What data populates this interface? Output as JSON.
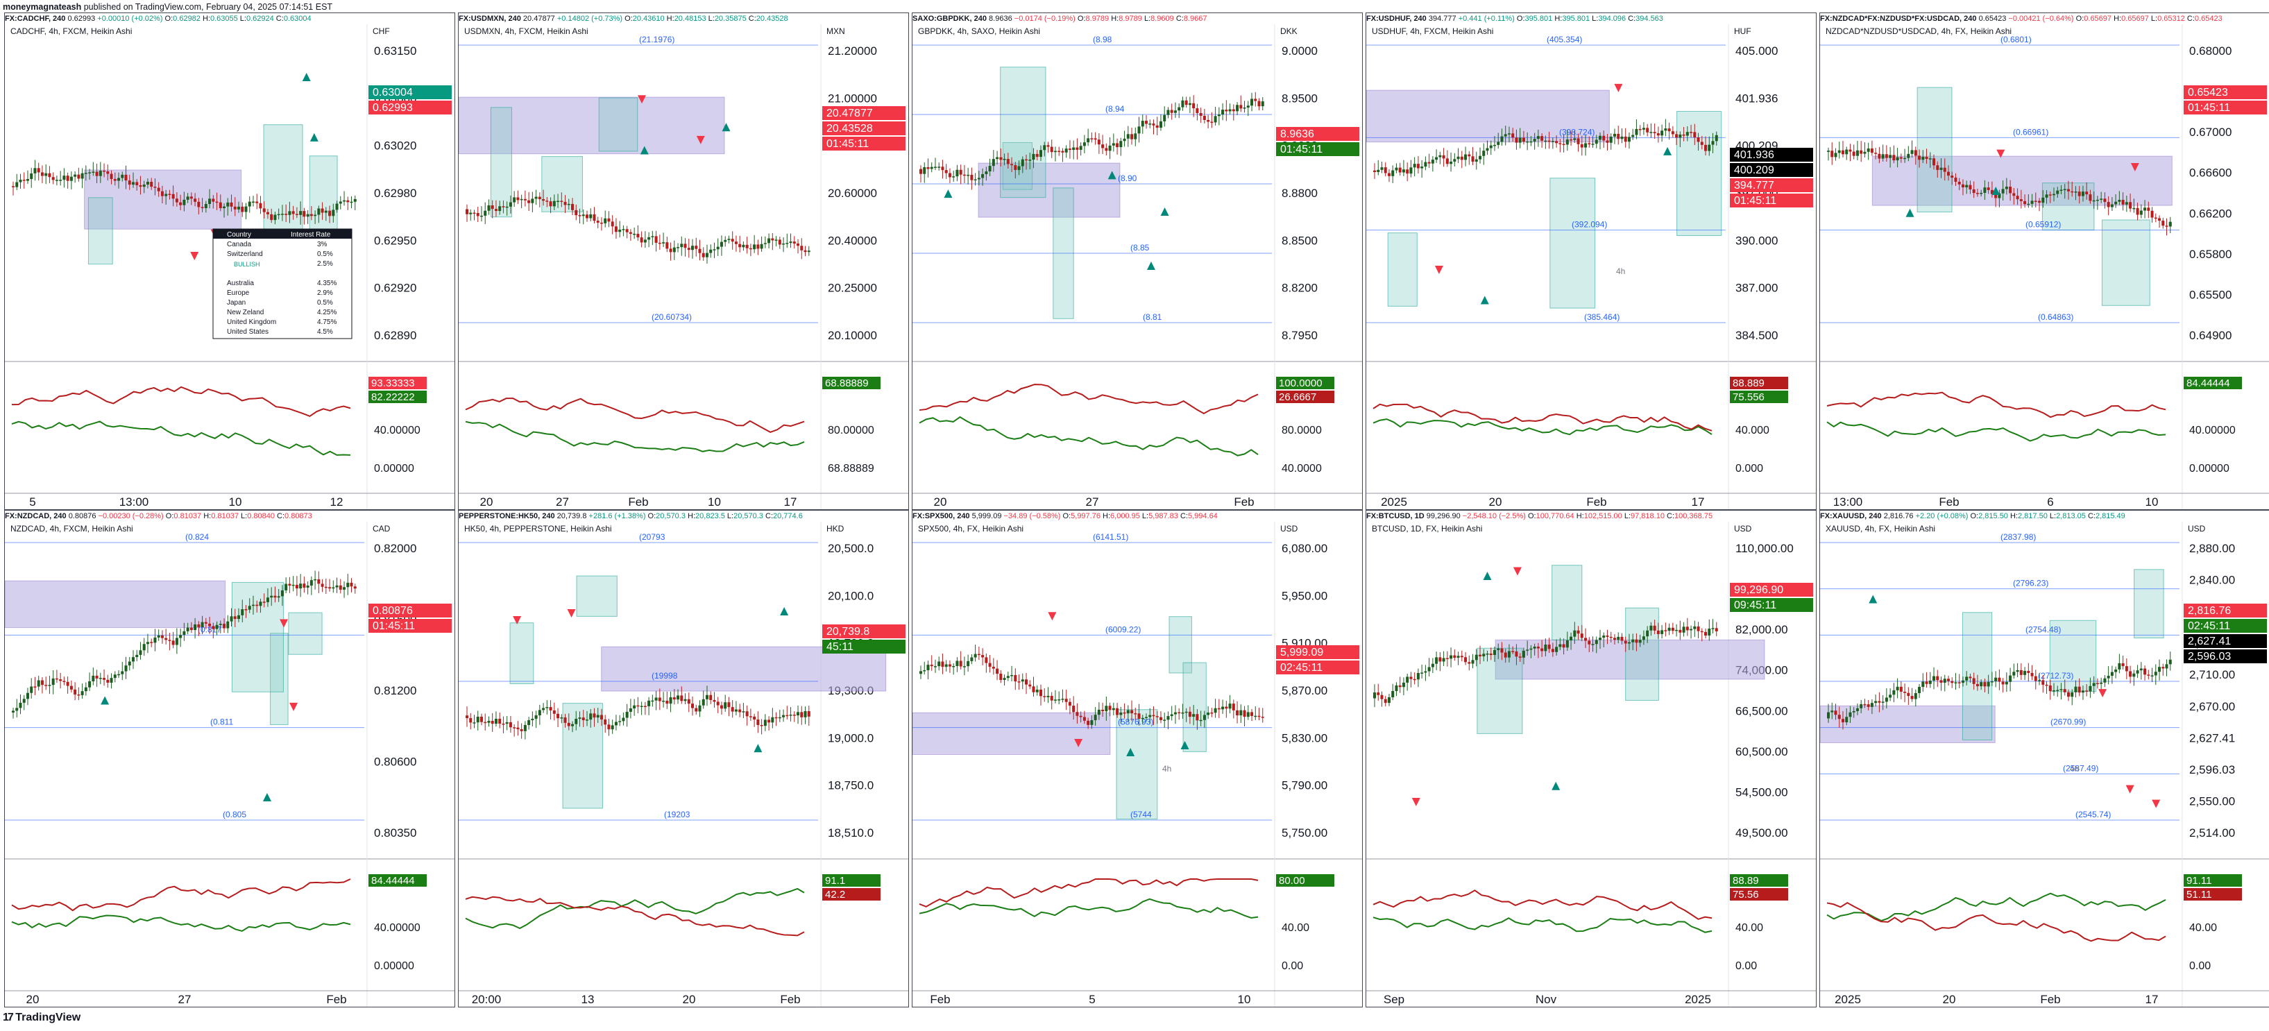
{
  "publisher": {
    "user": "moneymagnateash",
    "text": " published on TradingView.com, February 04, 2025 07:14:51 EST"
  },
  "footer": {
    "brand": "TradingView"
  },
  "colors": {
    "up": "#089981",
    "down": "#f23645",
    "zone": "#b2a9e0",
    "box": "#80cbc4",
    "grid": "#e0e3eb",
    "osc_green": "#1b7e14",
    "osc_red": "#b71c1c",
    "level_blue": "#2962ff"
  },
  "panels": [
    {
      "id": "cadchf",
      "header": {
        "sym": "FX:CADCHF, 240",
        "quote": "0.62993",
        "chg": "+0.00010 (+0.02%)",
        "dir": "up",
        "o": "0.62982",
        "h": "0.63055",
        "l": "0.62924",
        "c": "0.63004"
      },
      "legend": "CADCHF, 4h, FXCM, Heikin Ashi",
      "currency": "CHF",
      "price_ticks": [
        "0.63150",
        "0.63060",
        "0.63020",
        "0.62980",
        "0.62950",
        "0.62920",
        "0.62890"
      ],
      "price_tags": [
        {
          "text": "0.63004",
          "color": "#089981"
        },
        {
          "text": "0.62993",
          "color": "#f23645"
        }
      ],
      "osc_ticks": [
        "40.00000",
        "0.00000"
      ],
      "osc_tags": [
        {
          "text": "93.33333",
          "color": "#f23645"
        },
        {
          "text": "82.22222",
          "color": "#1b7e14"
        }
      ],
      "time_ticks": [
        "5",
        "13:00",
        "10",
        "12"
      ],
      "table": {
        "headers": [
          "Country",
          "Interest Rate"
        ],
        "rows": [
          [
            "Canada",
            "3%"
          ],
          [
            "Switzerland",
            "0.5%"
          ],
          [
            "",
            "2.5%"
          ],
          [
            "Australia",
            "4.35%"
          ],
          [
            "Europe",
            "2.9%"
          ],
          [
            "Japan",
            "0.5%"
          ],
          [
            "New Zeland",
            "4.25%"
          ],
          [
            "United Kingdom",
            "4.75%"
          ],
          [
            "United States",
            "4.5%"
          ]
        ],
        "note": "BULLISH"
      }
    },
    {
      "id": "usdmxn",
      "header": {
        "sym": "FX:USDMXN, 240",
        "quote": "20.47877",
        "chg": "+0.14802 (+0.73%)",
        "dir": "up",
        "o": "20.43610",
        "h": "20.48153",
        "l": "20.35875",
        "c": "20.43528"
      },
      "legend": "USDMXN, 4h, FXCM, Heikin Ashi",
      "currency": "MXN",
      "price_ticks": [
        "21.20000",
        "21.00000",
        "20.80000",
        "20.60000",
        "20.40000",
        "20.25000",
        "20.10000"
      ],
      "price_tags": [
        {
          "text": "20.47877",
          "color": "#f23645"
        },
        {
          "text": "20.43528",
          "color": "#f23645"
        },
        {
          "text": "01:45:11",
          "color": "#f23645"
        }
      ],
      "levels": [
        "(21.1976)",
        "(20.60734)"
      ],
      "osc_ticks": [
        "80.00000",
        "68.88889"
      ],
      "osc_tags": [
        {
          "text": "68.88889",
          "color": "#1b7e14"
        }
      ],
      "time_ticks": [
        "20",
        "27",
        "Feb",
        "10",
        "17"
      ]
    },
    {
      "id": "gbpdkk",
      "header": {
        "sym": "SAXO:GBPDKK, 240",
        "quote": "8.9636",
        "chg": "−0.0174 (−0.19%)",
        "dir": "dn",
        "o": "8.9789",
        "h": "8.9789",
        "l": "8.9609",
        "c": "8.9667"
      },
      "legend": "GBPDKK, 4h, SAXO, Heikin Ashi",
      "currency": "DKK",
      "price_ticks": [
        "9.0000",
        "8.9500",
        "8.9200",
        "8.8800",
        "8.8500",
        "8.8200",
        "8.7950"
      ],
      "price_tags": [
        {
          "text": "8.9636",
          "color": "#f23645"
        },
        {
          "text": "01:45:11",
          "color": "#1b7e14"
        }
      ],
      "levels": [
        "(8.98",
        "(8.94",
        "(8.90",
        "(8.85",
        "(8.81"
      ],
      "osc_ticks": [
        "80.0000",
        "40.0000"
      ],
      "osc_tags": [
        {
          "text": "100.0000",
          "color": "#1b7e14"
        },
        {
          "text": "26.6667",
          "color": "#b71c1c"
        }
      ],
      "time_ticks": [
        "20",
        "27",
        "Feb"
      ]
    },
    {
      "id": "usdhuf",
      "header": {
        "sym": "FX:USDHUF, 240",
        "quote": "394.777",
        "chg": "+0.441 (+0.11%)",
        "dir": "up",
        "o": "395.801",
        "h": "395.801",
        "l": "394.096",
        "c": "394.563"
      },
      "legend": "USDHUF, 4h, FXCM, Heikin Ashi",
      "currency": "HUF",
      "price_ticks": [
        "405.000",
        "401.936",
        "400.209",
        "397.000",
        "390.000",
        "387.000",
        "384.500"
      ],
      "price_tags": [
        {
          "text": "401.936",
          "color": "#000000"
        },
        {
          "text": "400.209",
          "color": "#000000"
        },
        {
          "text": "394.777",
          "color": "#f23645"
        },
        {
          "text": "01:45:11",
          "color": "#f23645"
        }
      ],
      "levels": [
        "(405.354)",
        "(398.724)",
        "(392.094)",
        "(385.464)"
      ],
      "osc_ticks": [
        "40.000",
        "0.000"
      ],
      "osc_tags": [
        {
          "text": "88.889",
          "color": "#b71c1c"
        },
        {
          "text": "75.556",
          "color": "#1b7e14"
        }
      ],
      "time_ticks": [
        "2025",
        "20",
        "Feb",
        "17"
      ],
      "label4h": "4h"
    },
    {
      "id": "nzdcad_comp",
      "header": {
        "sym": "FX:NZDCAD*FX:NZDUSD*FX:USDCAD, 240",
        "quote": "0.65423",
        "chg": "−0.00421 (−0.64%)",
        "dir": "dn",
        "o": "0.65697",
        "h": "0.65697",
        "l": "0.65312",
        "c": "0.65423"
      },
      "legend": "NZDCAD*NZDUSD*USDCAD, 4h, FX, Heikin Ashi",
      "currency": "",
      "price_ticks": [
        "0.68000",
        "0.67500",
        "0.67000",
        "0.66600",
        "0.66200",
        "0.65800",
        "0.65500",
        "0.64900"
      ],
      "price_tags": [
        {
          "text": "0.65423",
          "color": "#f23645"
        },
        {
          "text": "01:45:11",
          "color": "#f23645"
        }
      ],
      "levels": [
        "(0.6801)",
        "(0.66961)",
        "(0.65912)",
        "(0.64863)"
      ],
      "osc_ticks": [
        "40.00000",
        "0.00000"
      ],
      "osc_tags": [
        {
          "text": "84.44444",
          "color": "#1b7e14"
        }
      ],
      "time_ticks": [
        "13:00",
        "Feb",
        "6",
        "10"
      ]
    },
    {
      "id": "nzdcad",
      "header": {
        "sym": "FX:NZDCAD, 240",
        "quote": "0.80876",
        "chg": "−0.00230 (−0.28%)",
        "dir": "dn",
        "o": "0.81037",
        "h": "0.81037",
        "l": "0.80840",
        "c": "0.80873"
      },
      "legend": "NZDCAD, 4h, FXCM, Heikin Ashi",
      "currency": "CAD",
      "price_ticks": [
        "0.82000",
        "0.81600",
        "0.81200",
        "0.80600",
        "0.80350"
      ],
      "price_tags": [
        {
          "text": "0.80876",
          "color": "#f23645"
        },
        {
          "text": "01:45:11",
          "color": "#f23645"
        }
      ],
      "levels": [
        "(0.824",
        "(0.817",
        "(0.811",
        "(0.805"
      ],
      "osc_ticks": [
        "40.00000",
        "0.00000"
      ],
      "osc_tags": [
        {
          "text": "84.44444",
          "color": "#1b7e14"
        }
      ],
      "time_ticks": [
        "20",
        "27",
        "Feb"
      ]
    },
    {
      "id": "hk50",
      "header": {
        "sym": "PEPPERSTONE:HK50, 240",
        "quote": "20,739.8",
        "chg": "+281.6 (+1.38%)",
        "dir": "up",
        "o": "20,570.3",
        "h": "20,823.5",
        "l": "20,570.3",
        "c": "20,774.6"
      },
      "legend": "HK50, 4h, PEPPERSTONE, Heikin Ashi",
      "currency": "HKD",
      "price_ticks": [
        "20,500.0",
        "20,100.0",
        "19,700.0",
        "19,300.0",
        "19,000.0",
        "18,750.0",
        "18,510.0"
      ],
      "price_tags": [
        {
          "text": "20,739.8",
          "color": "#f23645"
        },
        {
          "text": "45:11",
          "color": "#1b7e14"
        }
      ],
      "levels": [
        "(20793",
        "(19998",
        "(19203"
      ],
      "osc_ticks": [],
      "osc_tags": [
        {
          "text": "91.1",
          "color": "#1b7e14"
        },
        {
          "text": "42.2",
          "color": "#b71c1c"
        }
      ],
      "time_ticks": [
        "20:00",
        "13",
        "20",
        "Feb"
      ]
    },
    {
      "id": "spx500",
      "header": {
        "sym": "FX:SPX500, 240",
        "quote": "5,999.09",
        "chg": "−34.89 (−0.58%)",
        "dir": "dn",
        "o": "5,997.76",
        "h": "6,000.95",
        "l": "5,987.83",
        "c": "5,994.64"
      },
      "legend": "SPX500, 4h, FX, Heikin Ashi",
      "currency": "USD",
      "price_ticks": [
        "6,080.00",
        "5,950.00",
        "5,910.00",
        "5,870.00",
        "5,830.00",
        "5,790.00",
        "5,750.00"
      ],
      "price_tags": [
        {
          "text": "5,999.09",
          "color": "#f23645"
        },
        {
          "text": "02:45:11",
          "color": "#f23645"
        }
      ],
      "levels": [
        "(6141.51)",
        "(6009.22)",
        "(5876.93)",
        "(5744"
      ],
      "osc_ticks": [
        "40.00",
        "0.00"
      ],
      "osc_tags": [
        {
          "text": "80.00",
          "color": "#1b7e14"
        }
      ],
      "time_ticks": [
        "Feb",
        "5",
        "10"
      ],
      "label4h": "4h"
    },
    {
      "id": "btcusd",
      "header": {
        "sym": "FX:BTCUSD, 1D",
        "quote": "99,296.90",
        "chg": "−2,548.10 (−2.5%)",
        "dir": "dn",
        "o": "100,770.64",
        "h": "102,515.00",
        "l": "97,818.10",
        "c": "100,368.75"
      },
      "legend": "BTCUSD, 1D, FX, Heikin Ashi",
      "currency": "USD",
      "price_ticks": [
        "110,000.00",
        "90,000.00",
        "82,000.00",
        "74,000.00",
        "66,500.00",
        "60,500.00",
        "54,500.00",
        "49,500.00"
      ],
      "price_tags": [
        {
          "text": "99,296.90",
          "color": "#f23645"
        },
        {
          "text": "09:45:11",
          "color": "#1b7e14"
        }
      ],
      "osc_ticks": [
        "40.00",
        "0.00"
      ],
      "osc_tags": [
        {
          "text": "88.89",
          "color": "#1b7e14"
        },
        {
          "text": "75.56",
          "color": "#b71c1c"
        }
      ],
      "time_ticks": [
        "Sep",
        "Nov",
        "2025"
      ]
    },
    {
      "id": "xauusd",
      "header": {
        "sym": "FX:XAUUSD, 240",
        "quote": "2,816.76",
        "chg": "+2.20 (+0.08%)",
        "dir": "up",
        "o": "2,815.50",
        "h": "2,817.50",
        "l": "2,813.05",
        "c": "2,815.49"
      },
      "legend": "XAUUSD, 4h, FX, Heikin Ashi",
      "currency": "USD",
      "price_ticks": [
        "2,880.00",
        "2,840.00",
        "2,790.00",
        "2,750.00",
        "2,710.00",
        "2,670.00",
        "2,627.41",
        "2,596.03",
        "2,550.00",
        "2,514.00"
      ],
      "price_tags": [
        {
          "text": "2,816.76",
          "color": "#f23645"
        },
        {
          "text": "02:45:11",
          "color": "#1b7e14"
        },
        {
          "text": "2,627.41",
          "color": "#000000"
        },
        {
          "text": "2,596.03",
          "color": "#000000"
        }
      ],
      "levels": [
        "(2837.98)",
        "(2796.23)",
        "(2754.48)",
        "(2712.73)",
        "(2670.99)",
        "(2587.49)",
        "(2545.74)"
      ],
      "osc_ticks": [
        "40.00",
        "0.00"
      ],
      "osc_tags": [
        {
          "text": "91.11",
          "color": "#1b7e14"
        },
        {
          "text": "51.11",
          "color": "#b71c1c"
        }
      ],
      "time_ticks": [
        "2025",
        "20",
        "Feb",
        "17"
      ],
      "label4h": "4h"
    }
  ],
  "chart_data": [
    {
      "type": "candlestick",
      "symbol": "CADCHF",
      "timeframe": "4h",
      "last": 0.62993,
      "open": 0.62982,
      "high": 0.63055,
      "low": 0.62924,
      "close": 0.63004,
      "y_ticks": [
        0.6315,
        0.6306,
        0.6302,
        0.6298,
        0.6295,
        0.6292,
        0.6289
      ]
    },
    {
      "type": "candlestick",
      "symbol": "USDMXN",
      "timeframe": "4h",
      "last": 20.47877,
      "open": 20.4361,
      "high": 20.48153,
      "low": 20.35875,
      "close": 20.43528,
      "y_ticks": [
        21.2,
        21.0,
        20.8,
        20.6,
        20.4,
        20.25,
        20.1
      ]
    },
    {
      "type": "candlestick",
      "symbol": "GBPDKK",
      "timeframe": "4h",
      "last": 8.9636,
      "open": 8.9789,
      "high": 8.9789,
      "low": 8.9609,
      "close": 8.9667,
      "y_ticks": [
        9.0,
        8.95,
        8.92,
        8.88,
        8.85,
        8.82,
        8.795
      ]
    },
    {
      "type": "candlestick",
      "symbol": "USDHUF",
      "timeframe": "4h",
      "last": 394.777,
      "open": 395.801,
      "high": 395.801,
      "low": 394.096,
      "close": 394.563,
      "y_ticks": [
        405,
        397,
        390,
        387,
        384.5
      ]
    },
    {
      "type": "candlestick",
      "symbol": "NZDCAD*NZDUSD*USDCAD",
      "timeframe": "4h",
      "last": 0.65423,
      "open": 0.65697,
      "high": 0.65697,
      "low": 0.65312,
      "close": 0.65423,
      "y_ticks": [
        0.68,
        0.675,
        0.67,
        0.666,
        0.662,
        0.658,
        0.655,
        0.649
      ]
    },
    {
      "type": "candlestick",
      "symbol": "NZDCAD",
      "timeframe": "4h",
      "last": 0.80876,
      "open": 0.81037,
      "high": 0.81037,
      "low": 0.8084,
      "close": 0.80873,
      "y_ticks": [
        0.82,
        0.816,
        0.812,
        0.806,
        0.8035
      ]
    },
    {
      "type": "candlestick",
      "symbol": "HK50",
      "timeframe": "4h",
      "last": 20739.8,
      "open": 20570.3,
      "high": 20823.5,
      "low": 20570.3,
      "close": 20774.6,
      "y_ticks": [
        20500,
        20100,
        19700,
        19300,
        19000,
        18750,
        18510
      ]
    },
    {
      "type": "candlestick",
      "symbol": "SPX500",
      "timeframe": "4h",
      "last": 5999.09,
      "open": 5997.76,
      "high": 6000.95,
      "low": 5987.83,
      "close": 5994.64,
      "y_ticks": [
        6080,
        5950,
        5910,
        5870,
        5830,
        5790,
        5750
      ]
    },
    {
      "type": "candlestick",
      "symbol": "BTCUSD",
      "timeframe": "1D",
      "last": 99296.9,
      "open": 100770.64,
      "high": 102515.0,
      "low": 97818.1,
      "close": 100368.75,
      "y_ticks": [
        110000,
        90000,
        82000,
        74000,
        66500,
        60500,
        54500,
        49500
      ]
    },
    {
      "type": "candlestick",
      "symbol": "XAUUSD",
      "timeframe": "4h",
      "last": 2816.76,
      "open": 2815.5,
      "high": 2817.5,
      "low": 2813.05,
      "close": 2815.49,
      "y_ticks": [
        2880,
        2840,
        2790,
        2750,
        2710,
        2670,
        2550,
        2514
      ]
    }
  ]
}
